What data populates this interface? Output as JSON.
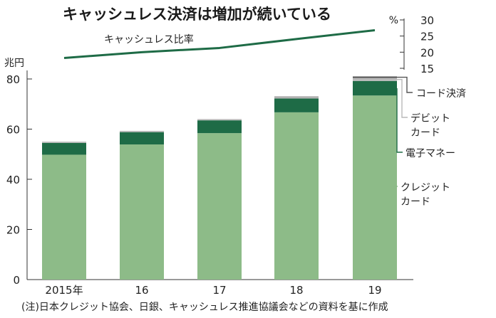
{
  "chart_data": {
    "title": "キャッシュレス決済は増加が続いている",
    "type": "bar",
    "stacked": true,
    "categories": [
      "2015年",
      "16",
      "17",
      "18",
      "19"
    ],
    "ylabel": "兆円",
    "ylim": [
      0,
      80
    ],
    "yticks": [
      0,
      20,
      40,
      60,
      80
    ],
    "grid": false,
    "legend_placement": "right, labels beside the 2019 bar",
    "series": [
      {
        "name": "クレジットカード",
        "values": [
          49.8,
          53.9,
          58.4,
          66.7,
          73.4
        ],
        "color": "#8dbb88"
      },
      {
        "name": "電子マネー",
        "values": [
          4.7,
          4.9,
          5.1,
          5.5,
          5.8
        ],
        "color": "#1e6b46"
      },
      {
        "name": "デビットカード",
        "values": [
          0.5,
          0.5,
          0.5,
          0.7,
          1.2
        ],
        "color": "#b9b9b9"
      },
      {
        "name": "コード決済",
        "values": [
          0.0,
          0.0,
          0.0,
          0.1,
          0.6
        ],
        "color": "#555555"
      }
    ],
    "series_labels": {
      "code": "コード決済",
      "debit": [
        "デビット",
        "カード"
      ],
      "emoney": "電子マネー",
      "credit": [
        "クレジット",
        "カード"
      ]
    },
    "ratio": {
      "label": "キャッシュレス比率",
      "unit": "%",
      "ylim": [
        15,
        30
      ],
      "yticks": [
        15,
        20,
        25,
        30
      ],
      "values": [
        18.2,
        20.0,
        21.3,
        24.1,
        26.8
      ],
      "color": "#1e6b46"
    },
    "note": "(注)日本クレジット協会、日銀、キャッシュレス推進協議会などの資料を基に作成"
  }
}
